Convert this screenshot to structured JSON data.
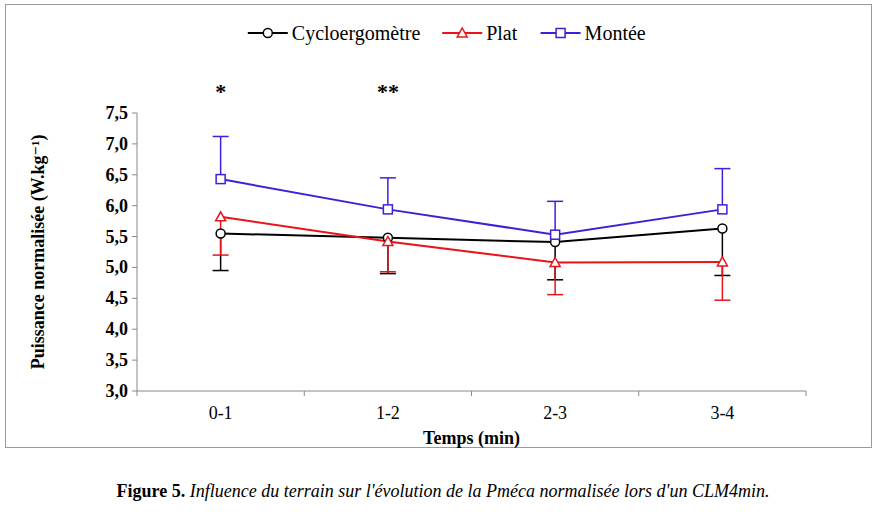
{
  "chart_data": {
    "type": "line",
    "title": "Figure 5. Influence du terrain sur l'évolution de la Pméca normalisée lors d'un CLM4min.",
    "x_label": "Temps (min)",
    "y_label": "Puissance normalisée (W.kg⁻¹)",
    "categories": [
      "0-1",
      "1-2",
      "2-3",
      "3-4"
    ],
    "series": [
      {
        "name": "Cycloergomètre",
        "color": "#000000",
        "marker": "circle",
        "values": [
          5.55,
          5.48,
          5.41,
          5.63
        ],
        "errors_low": [
          0.6,
          0.58,
          0.61,
          0.76
        ]
      },
      {
        "name": "Plat",
        "color": "#e8141a",
        "marker": "triangle",
        "values": [
          5.82,
          5.42,
          5.08,
          5.09
        ],
        "errors_low": [
          0.62,
          0.49,
          0.52,
          0.62
        ]
      },
      {
        "name": "Montée",
        "color": "#3b22d8",
        "marker": "square",
        "values": [
          6.43,
          5.94,
          5.53,
          5.94
        ],
        "errors_high": [
          0.69,
          0.51,
          0.54,
          0.66
        ]
      }
    ],
    "annotations": [
      {
        "text": "*",
        "category": "0-1"
      },
      {
        "text": "**",
        "category": "1-2"
      }
    ],
    "ylim": [
      3.0,
      7.5
    ],
    "yticks": [
      {
        "value": 3.0,
        "label": "3,0"
      },
      {
        "value": 3.5,
        "label": "3,5"
      },
      {
        "value": 4.0,
        "label": "4,0"
      },
      {
        "value": 4.5,
        "label": "4,5"
      },
      {
        "value": 5.0,
        "label": "5,0"
      },
      {
        "value": 5.5,
        "label": "5,5"
      },
      {
        "value": 6.0,
        "label": "6,0"
      },
      {
        "value": 6.5,
        "label": "6,5"
      },
      {
        "value": 7.0,
        "label": "7,0"
      },
      {
        "value": 7.5,
        "label": "7,5"
      }
    ],
    "grid": false,
    "legend": "top"
  }
}
